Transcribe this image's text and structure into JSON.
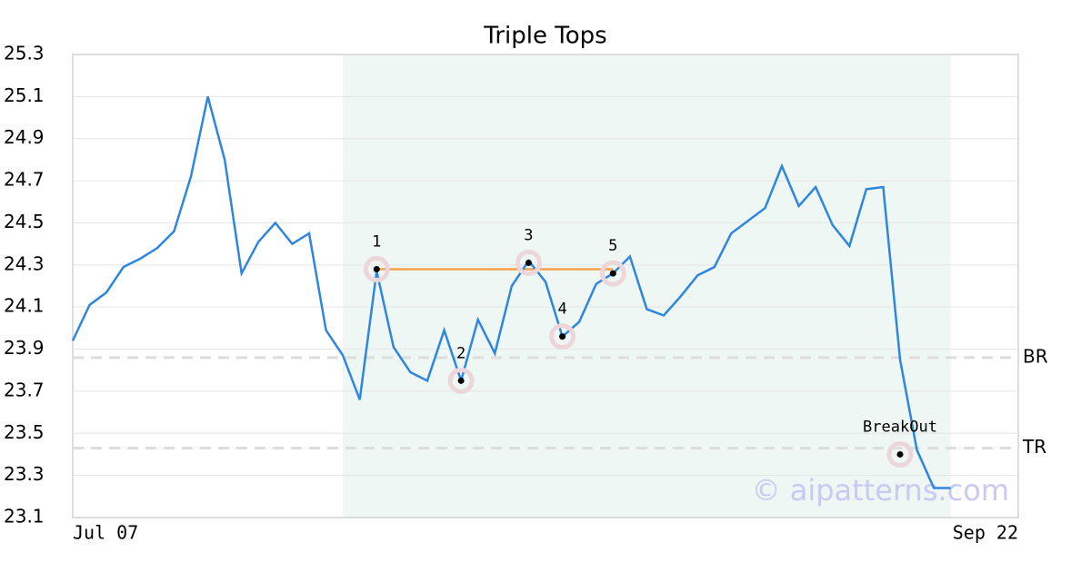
{
  "chart_data": {
    "type": "line",
    "title": "Triple Tops",
    "x": [
      0,
      1,
      2,
      3,
      4,
      5,
      6,
      7,
      8,
      9,
      10,
      11,
      12,
      13,
      14,
      15,
      16,
      17,
      18,
      19,
      20,
      21,
      22,
      23,
      24,
      25,
      26,
      27,
      28,
      29,
      30,
      31,
      32,
      33,
      34,
      35,
      36,
      37,
      38,
      39,
      40,
      41,
      42,
      43,
      44,
      45,
      46,
      47,
      48,
      49,
      50,
      51,
      52
    ],
    "series": [
      {
        "color": "#2e86de",
        "values": [
          23.94,
          24.11,
          24.17,
          24.29,
          24.33,
          24.38,
          24.46,
          24.72,
          25.1,
          24.8,
          24.26,
          24.41,
          24.5,
          24.4,
          24.45,
          23.99,
          23.87,
          23.66,
          24.27,
          23.91,
          23.79,
          23.75,
          23.99,
          23.75,
          24.04,
          23.88,
          24.2,
          24.32,
          24.22,
          23.96,
          24.03,
          24.21,
          24.26,
          24.34,
          24.09,
          24.06,
          24.15,
          24.25,
          24.29,
          24.45,
          24.51,
          24.57,
          24.77,
          24.58,
          24.67,
          24.49,
          24.39,
          24.66,
          24.67,
          23.85,
          23.42,
          23.24,
          23.24
        ]
      }
    ],
    "xlim": [
      0,
      56
    ],
    "xticks": [
      {
        "value": 0,
        "label": "Jul 07"
      },
      {
        "value": 56,
        "label": "Sep 22"
      }
    ],
    "ylim": [
      23.1,
      25.3
    ],
    "yticks": [
      23.1,
      23.3,
      23.5,
      23.7,
      23.9,
      24.1,
      24.3,
      24.5,
      24.7,
      24.9,
      25.1,
      25.3
    ],
    "grid": true,
    "shade": {
      "x": [
        16,
        52
      ],
      "color": "#eef7f3"
    },
    "neckline": {
      "x": [
        18,
        32
      ],
      "y": 24.28,
      "color": "#f5a04a"
    },
    "points": [
      {
        "label": "1",
        "x": 18,
        "y": 24.28
      },
      {
        "label": "2",
        "x": 23,
        "y": 23.75
      },
      {
        "label": "3",
        "x": 27,
        "y": 24.31
      },
      {
        "label": "4",
        "x": 29,
        "y": 23.96
      },
      {
        "label": "5",
        "x": 32,
        "y": 24.26
      }
    ],
    "breakout": {
      "label": "BreakOut",
      "x": 49,
      "y": 23.4
    },
    "levels": [
      {
        "label": "BR",
        "value": 23.86
      },
      {
        "label": "TR",
        "value": 23.43
      }
    ],
    "watermark": "© aipatterns.com"
  }
}
